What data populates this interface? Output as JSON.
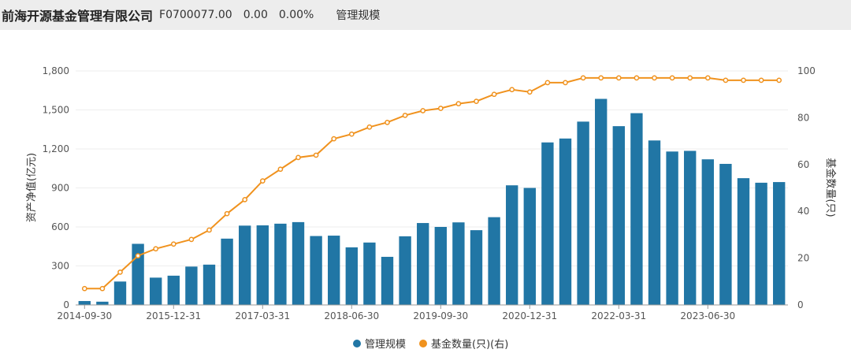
{
  "header": {
    "company": "前海开源基金管理有限公司",
    "code": "F0700077.00",
    "change": "0.00",
    "change_pct": "0.00%",
    "metric": "管理规模"
  },
  "chart_data": {
    "type": "bar+line",
    "categories": [
      "2014-09-30",
      "2014-12-31",
      "2015-03-31",
      "2015-06-30",
      "2015-09-30",
      "2015-12-31",
      "2016-03-31",
      "2016-06-30",
      "2016-09-30",
      "2016-12-31",
      "2017-03-31",
      "2017-06-30",
      "2017-09-30",
      "2017-12-31",
      "2018-03-31",
      "2018-06-30",
      "2018-09-30",
      "2018-12-31",
      "2019-03-31",
      "2019-06-30",
      "2019-09-30",
      "2019-12-31",
      "2020-03-31",
      "2020-06-30",
      "2020-09-30",
      "2020-12-31",
      "2021-03-31",
      "2021-06-30",
      "2021-09-30",
      "2021-12-31",
      "2022-03-31",
      "2022-06-30",
      "2022-09-30",
      "2022-12-31",
      "2023-03-31",
      "2023-06-30",
      "2023-09-30",
      "2023-12-31",
      "2024-03-31",
      "2024-06-30"
    ],
    "xtick_labels": [
      "2014-09-30",
      "2015-12-31",
      "2017-03-31",
      "2018-06-30",
      "2019-09-30",
      "2020-12-31",
      "2022-03-31",
      "2023-06-30"
    ],
    "ylabel": "资产净值(亿元)",
    "y2label": "基金数量(只)",
    "ylim": [
      0,
      1800
    ],
    "yticks": [
      0,
      300,
      600,
      900,
      1200,
      1500,
      1800
    ],
    "y2lim": [
      0,
      100
    ],
    "y2ticks": [
      0,
      20,
      40,
      60,
      80,
      100
    ],
    "grid": true,
    "legend": "bottom",
    "series": [
      {
        "name": "管理规模",
        "type": "bar",
        "axis": "left",
        "color": "#2176a5",
        "values": [
          30,
          25,
          180,
          470,
          210,
          225,
          295,
          310,
          510,
          610,
          612,
          625,
          637,
          530,
          533,
          443,
          480,
          370,
          528,
          630,
          600,
          635,
          575,
          675,
          920,
          900,
          1250,
          1280,
          1410,
          1585,
          1375,
          1475,
          1265,
          1180,
          1185,
          1120,
          1085,
          975,
          940,
          945
        ]
      },
      {
        "name": "基金数量(只)(右)",
        "type": "line",
        "axis": "right",
        "color": "#f0921e",
        "values": [
          7,
          7,
          14,
          21,
          24,
          26,
          28,
          32,
          39,
          45,
          53,
          58,
          63,
          64,
          71,
          73,
          76,
          78,
          81,
          83,
          84,
          86,
          87,
          90,
          92,
          91,
          95,
          95,
          97,
          97,
          97,
          97,
          97,
          97,
          97,
          97,
          96,
          96,
          96,
          96
        ]
      }
    ]
  }
}
